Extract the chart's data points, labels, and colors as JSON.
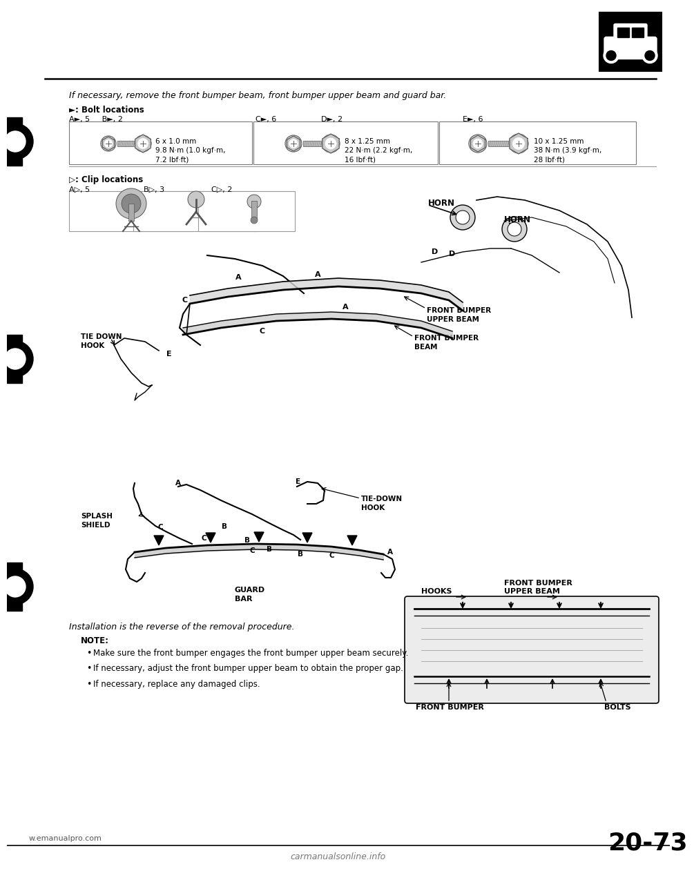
{
  "bg_color": "#ffffff",
  "page_num": "20-73",
  "website": "w.emanualpro.com",
  "watermark": "carmanualsonline.info",
  "instruction_text": "If necessary, remove the front bumper beam, front bumper upper beam and guard bar.",
  "bolt_section_title": "►: Bolt locations",
  "bolt_row1_left": "A►, 5     B►, 2",
  "bolt_row1_mid1": "C►, 6",
  "bolt_row1_mid2": "D►, 2",
  "bolt_row1_right": "E►, 6",
  "bolt_specs": [
    "6 x 1.0 mm\n9.8 N·m (1.0 kgf·m,\n7.2 lbf·ft)",
    "8 x 1.25 mm\n22 N·m (2.2 kgf·m,\n16 lbf·ft)",
    "10 x 1.25 mm\n38 N·m (3.9 kgf·m,\n28 lbf·ft)"
  ],
  "clip_section_title": "▷: Clip locations",
  "clip_label_A": "A▷, 5",
  "clip_label_B": "B▷, 3",
  "clip_label_C": "C▷, 2",
  "installation_text": "Installation is the reverse of the removal procedure.",
  "note_title": "NOTE:",
  "note_bullets": [
    "Make sure the front bumper engages the front bumper upper beam securely.",
    "If necessary, adjust the front bumper upper beam to obtain the proper gap.",
    "If necessary, replace any damaged clips."
  ],
  "lbl_horn1": "HORN",
  "lbl_horn2": "HORN",
  "lbl_tie_down1": "TIE DOWN\nHOOK",
  "lbl_front_bumper_upper": "FRONT BUMPER\nUPPER BEAM",
  "lbl_front_bumper": "FRONT BUMPER\nBEAM",
  "lbl_splash": "SPLASH\nSHIELD",
  "lbl_tie_down2": "TIE-DOWN\nHOOK",
  "lbl_guard_bar": "GUARD\nBAR",
  "lbl_hooks": "HOOKS",
  "lbl_front_bumper_upper2": "FRONT BUMPER\nUPPER BEAM",
  "lbl_front_bumper3": "FRONT BUMPER",
  "lbl_bolts": "BOLTS"
}
